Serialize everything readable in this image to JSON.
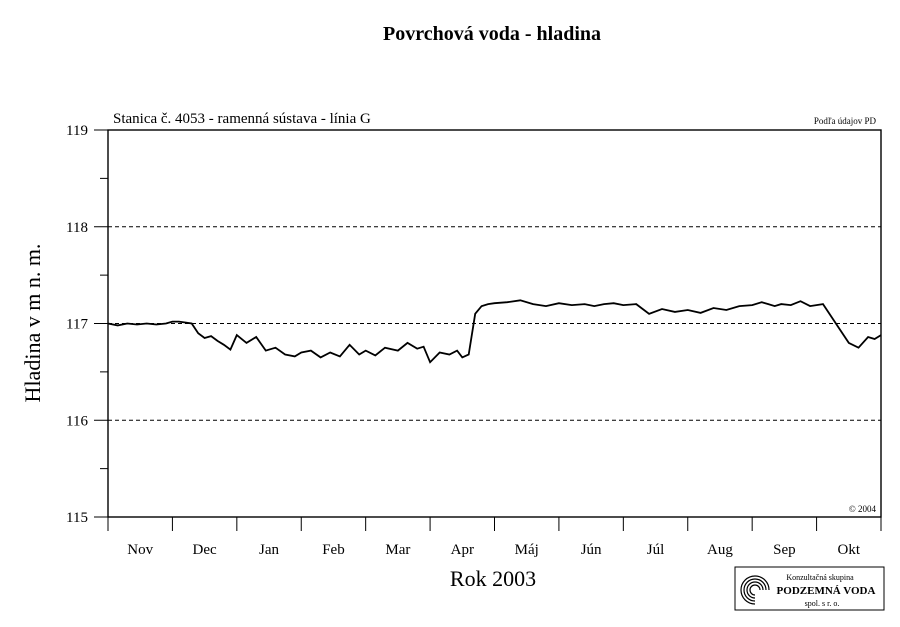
{
  "chart_data": {
    "type": "line",
    "title": "Povrchová voda - hladina",
    "subtitle": "Stanica č. 4053 - ramenná sústava - línia G",
    "source_note": "Podľa údajov PD",
    "copyright": "© 2004",
    "xlabel": "Rok 2003",
    "ylabel": "Hladina v m n. m.",
    "ylim": [
      115,
      119
    ],
    "yticks": [
      "115",
      "116",
      "117",
      "118",
      "119"
    ],
    "grid_dashed_at": [
      116,
      117,
      118
    ],
    "months": [
      "Nov",
      "Dec",
      "Jan",
      "Feb",
      "Mar",
      "Apr",
      "Máj",
      "Jún",
      "Júl",
      "Aug",
      "Sep",
      "Okt"
    ],
    "x_range_months": [
      0,
      12
    ],
    "series": [
      {
        "x": [
          0,
          0.15,
          0.3,
          0.45,
          0.6,
          0.75,
          0.9,
          1.0,
          1.1,
          1.2,
          1.3,
          1.4,
          1.5,
          1.6,
          1.7,
          1.8,
          1.9,
          2.0,
          2.15,
          2.3,
          2.45,
          2.6,
          2.75,
          2.9,
          3.0,
          3.15,
          3.3,
          3.45,
          3.6,
          3.75,
          3.9,
          4.0,
          4.15,
          4.3,
          4.5,
          4.65,
          4.8,
          4.9,
          5.0,
          5.15,
          5.3,
          5.42,
          5.5,
          5.6,
          5.7,
          5.8,
          5.9,
          6.0,
          6.2,
          6.4,
          6.6,
          6.8,
          7.0,
          7.2,
          7.4,
          7.55,
          7.7,
          7.85,
          8.0,
          8.2,
          8.4,
          8.6,
          8.8,
          9.0,
          9.2,
          9.4,
          9.6,
          9.8,
          10.0,
          10.15,
          10.25,
          10.35,
          10.45,
          10.6,
          10.75,
          10.9,
          11.1,
          11.3,
          11.5,
          11.65,
          11.8,
          11.9,
          12.0
        ],
        "y": [
          117.0,
          116.98,
          117.0,
          116.99,
          117.0,
          116.99,
          117.0,
          117.02,
          117.02,
          117.01,
          117.0,
          116.9,
          116.85,
          116.87,
          116.82,
          116.78,
          116.73,
          116.88,
          116.8,
          116.86,
          116.72,
          116.75,
          116.68,
          116.66,
          116.7,
          116.72,
          116.65,
          116.7,
          116.66,
          116.78,
          116.68,
          116.72,
          116.67,
          116.75,
          116.72,
          116.8,
          116.74,
          116.76,
          116.6,
          116.7,
          116.68,
          116.72,
          116.65,
          116.68,
          117.1,
          117.18,
          117.2,
          117.21,
          117.22,
          117.24,
          117.2,
          117.18,
          117.21,
          117.19,
          117.2,
          117.18,
          117.2,
          117.21,
          117.19,
          117.2,
          117.1,
          117.15,
          117.12,
          117.14,
          117.11,
          117.16,
          117.14,
          117.18,
          117.19,
          117.22,
          117.2,
          117.18,
          117.2,
          117.19,
          117.23,
          117.18,
          117.2,
          117.0,
          116.8,
          116.75,
          116.86,
          116.84,
          116.88
        ]
      }
    ]
  },
  "logo": {
    "line1": "Konzultačná skupina",
    "line2": "PODZEMNÁ VODA",
    "line3": "spol. s r. o."
  }
}
